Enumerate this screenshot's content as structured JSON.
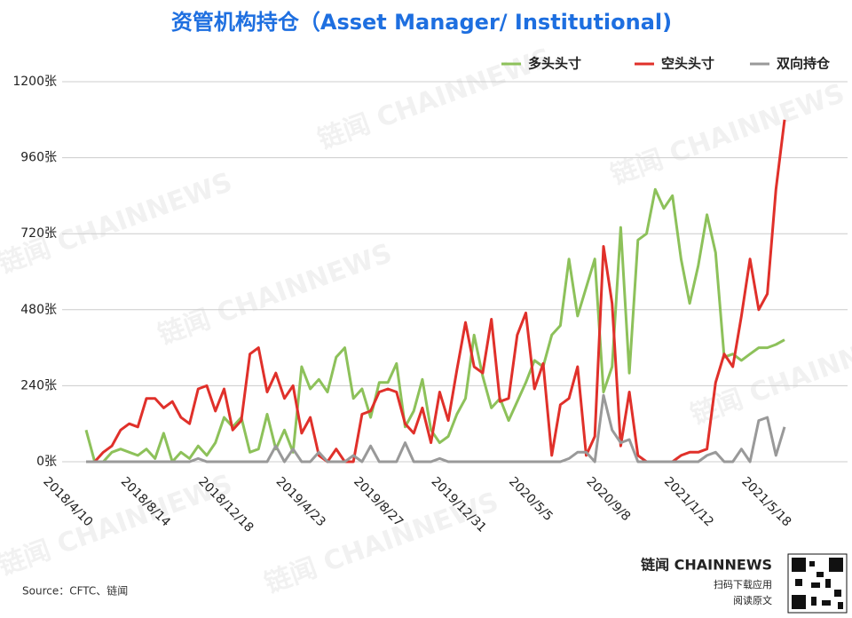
{
  "chart_data": {
    "type": "line",
    "title": "资管机构持仓（Asset Manager/ Institutional)",
    "source": "Source：CFTC、链闻",
    "brand": "链闻 CHAINNEWS",
    "brand_lines": [
      "扫码下载应用",
      "阅读原文"
    ],
    "categories": [
      "2018/4/10",
      null,
      null,
      null,
      null,
      null,
      null,
      null,
      null,
      "2018/8/14",
      null,
      null,
      null,
      null,
      null,
      null,
      null,
      null,
      "2018/12/18",
      null,
      null,
      null,
      null,
      null,
      null,
      null,
      null,
      "2019/4/23",
      null,
      null,
      null,
      null,
      null,
      null,
      null,
      null,
      "2019/8/27",
      null,
      null,
      null,
      null,
      null,
      null,
      null,
      null,
      "2019/12/31",
      null,
      null,
      null,
      null,
      null,
      null,
      null,
      null,
      "2020/5/5",
      null,
      null,
      null,
      null,
      null,
      null,
      null,
      null,
      "2020/9/8",
      null,
      null,
      null,
      null,
      null,
      null,
      null,
      null,
      "2021/1/12",
      null,
      null,
      null,
      null,
      null,
      null,
      null,
      null,
      "2021/5/18"
    ],
    "series": [
      {
        "name": "多头头寸",
        "color": "#8dc15a",
        "values": [
          100,
          0,
          0,
          30,
          40,
          30,
          20,
          40,
          10,
          90,
          0,
          30,
          10,
          50,
          20,
          60,
          140,
          110,
          140,
          30,
          40,
          150,
          40,
          100,
          30,
          300,
          230,
          260,
          220,
          330,
          360,
          200,
          230,
          140,
          250,
          250,
          310,
          110,
          160,
          260,
          100,
          60,
          80,
          150,
          200,
          400,
          270,
          170,
          200,
          130,
          190,
          250,
          320,
          300,
          400,
          430,
          640,
          460,
          550,
          640,
          220,
          300,
          740,
          280,
          700,
          720,
          860,
          800,
          840,
          640,
          500,
          620,
          780,
          660,
          330,
          340,
          320,
          340,
          360,
          360,
          370,
          385
        ]
      },
      {
        "name": "空头头寸",
        "color": "#e0302a",
        "values": [
          0,
          0,
          30,
          50,
          100,
          120,
          110,
          200,
          200,
          170,
          190,
          140,
          120,
          230,
          240,
          160,
          230,
          100,
          130,
          340,
          360,
          220,
          280,
          200,
          240,
          90,
          140,
          20,
          0,
          40,
          0,
          0,
          150,
          160,
          220,
          230,
          220,
          120,
          90,
          170,
          60,
          220,
          130,
          290,
          440,
          300,
          280,
          450,
          190,
          200,
          400,
          470,
          230,
          310,
          20,
          180,
          200,
          300,
          20,
          80,
          680,
          500,
          50,
          220,
          20,
          0,
          0,
          0,
          0,
          20,
          30,
          30,
          40,
          250,
          340,
          300,
          460,
          640,
          480,
          530,
          860,
          1080
        ]
      },
      {
        "name": "双向持仓",
        "color": "#999999",
        "values": [
          0,
          0,
          0,
          0,
          0,
          0,
          0,
          0,
          0,
          0,
          0,
          0,
          0,
          10,
          0,
          0,
          0,
          0,
          0,
          0,
          0,
          0,
          50,
          0,
          40,
          0,
          0,
          30,
          0,
          0,
          0,
          20,
          0,
          50,
          0,
          0,
          0,
          60,
          0,
          0,
          0,
          10,
          0,
          0,
          0,
          0,
          0,
          0,
          0,
          0,
          0,
          0,
          0,
          0,
          0,
          0,
          10,
          30,
          30,
          0,
          210,
          100,
          60,
          70,
          0,
          0,
          0,
          0,
          0,
          0,
          0,
          0,
          20,
          30,
          0,
          0,
          40,
          0,
          130,
          140,
          20,
          110
        ]
      }
    ],
    "ylim": [
      0,
      1200
    ],
    "yticks": [
      {
        "value": 0,
        "label": "0张"
      },
      {
        "value": 240,
        "label": "240张"
      },
      {
        "value": 480,
        "label": "480张"
      },
      {
        "value": 720,
        "label": "720张"
      },
      {
        "value": 960,
        "label": "960张"
      },
      {
        "value": 1200,
        "label": "1200张"
      }
    ],
    "grid": true,
    "legend": "top-right"
  }
}
